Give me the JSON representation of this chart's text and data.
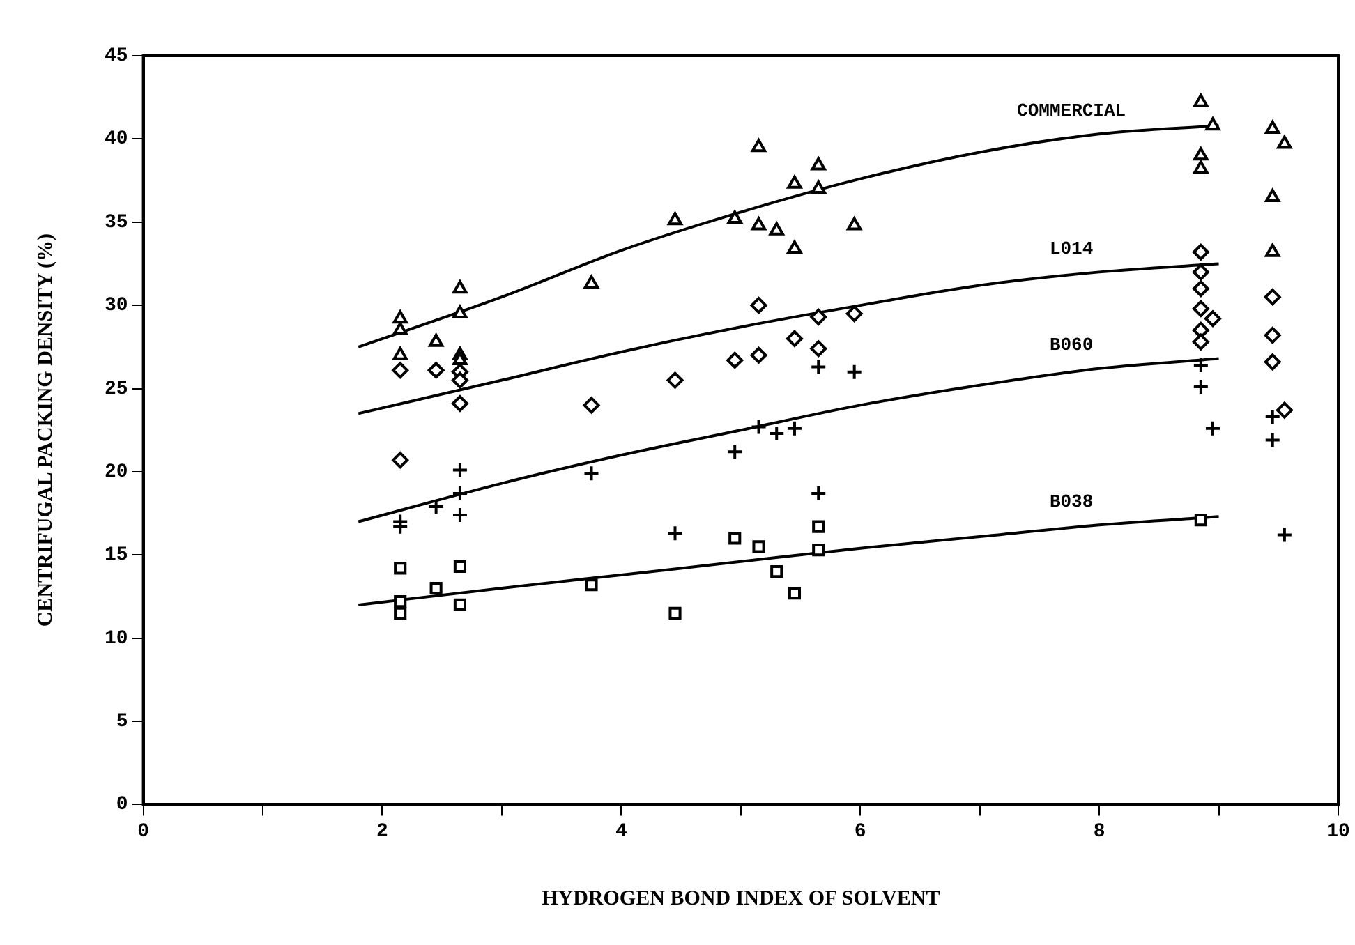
{
  "chart_data": {
    "type": "scatter",
    "xlabel": "HYDROGEN BOND INDEX OF SOLVENT",
    "ylabel": "CENTRIFUGAL PACKING DENSITY (%)",
    "xlim": [
      0,
      10
    ],
    "xticks": [
      0,
      {
        "value": 1,
        "label": null
      },
      2,
      {
        "value": 3,
        "label": null
      },
      4,
      {
        "value": 5,
        "label": null
      },
      6,
      {
        "value": 7,
        "label": null
      },
      8,
      {
        "value": 9,
        "label": null
      },
      10
    ],
    "ylim": [
      0,
      45
    ],
    "yticks": [
      0,
      5,
      10,
      15,
      20,
      25,
      30,
      35,
      40,
      45
    ],
    "grid": false,
    "legend": false,
    "series": [
      {
        "marker": "triangle",
        "color": "#000000",
        "x": [
          2.15,
          2.15,
          2.15,
          2.45,
          2.65,
          2.65,
          2.65,
          2.65,
          3.75,
          4.45,
          4.95,
          5.15,
          5.15,
          5.3,
          5.45,
          5.45,
          5.65,
          5.65,
          5.95,
          8.85,
          8.85,
          8.85,
          8.95,
          9.45,
          9.55,
          9.45,
          9.45
        ],
        "values": [
          29.2,
          28.5,
          27,
          27.8,
          31,
          29.5,
          27,
          26.7,
          31.3,
          35.1,
          35.2,
          39.5,
          34.8,
          34.5,
          37.3,
          33.4,
          38.4,
          37,
          34.8,
          42.2,
          39,
          38.2,
          40.8,
          40.6,
          39.7,
          36.5,
          33.2
        ]
      },
      {
        "marker": "diamond",
        "color": "#000000",
        "x": [
          2.15,
          2.15,
          2.45,
          2.65,
          2.65,
          2.65,
          3.75,
          4.45,
          4.95,
          5.15,
          5.15,
          5.45,
          5.65,
          5.65,
          5.95,
          8.85,
          8.85,
          8.85,
          8.85,
          8.95,
          8.85,
          8.85,
          9.45,
          9.45,
          9.45,
          9.55
        ],
        "values": [
          26.1,
          20.7,
          26.1,
          26,
          25.5,
          24.1,
          24,
          25.5,
          26.7,
          30,
          27,
          28,
          29.3,
          27.4,
          29.5,
          33.2,
          32,
          31,
          29.8,
          29.2,
          28.5,
          27.8,
          30.5,
          28.2,
          26.6,
          23.7
        ]
      },
      {
        "marker": "cross",
        "color": "#000000",
        "x": [
          2.15,
          2.15,
          2.45,
          2.65,
          2.65,
          2.65,
          3.75,
          4.45,
          4.95,
          5.15,
          5.3,
          5.45,
          5.65,
          5.65,
          5.95,
          8.85,
          8.85,
          8.95,
          9.45,
          9.45,
          9.55
        ],
        "values": [
          17,
          16.7,
          17.9,
          20.1,
          18.7,
          17.4,
          19.9,
          16.3,
          21.2,
          22.7,
          22.3,
          22.6,
          26.3,
          18.7,
          26,
          26.4,
          25.1,
          22.6,
          23.3,
          21.9,
          16.2
        ]
      },
      {
        "marker": "square",
        "color": "#000000",
        "x": [
          2.15,
          2.15,
          2.15,
          2.45,
          2.65,
          2.65,
          3.75,
          4.45,
          4.95,
          5.15,
          5.3,
          5.45,
          5.65,
          5.65,
          8.85
        ],
        "values": [
          14.2,
          12.2,
          11.5,
          13,
          14.3,
          12,
          13.2,
          11.5,
          16,
          15.5,
          14,
          12.7,
          16.7,
          15.3,
          17.1
        ]
      },
      {
        "type": "line",
        "name": "COMMERCIAL",
        "marker": "none",
        "color": "#000000",
        "x": [
          1.8,
          3,
          4,
          5,
          6,
          7,
          8,
          9
        ],
        "values": [
          27.5,
          30.5,
          33.3,
          35.6,
          37.6,
          39.2,
          40.3,
          40.8
        ]
      },
      {
        "type": "line",
        "name": "L014",
        "marker": "none",
        "color": "#000000",
        "x": [
          1.8,
          3,
          4,
          5,
          6,
          7,
          8,
          9
        ],
        "values": [
          23.5,
          25.5,
          27.2,
          28.7,
          30,
          31.2,
          32,
          32.5
        ]
      },
      {
        "type": "line",
        "name": "B060",
        "marker": "none",
        "color": "#000000",
        "x": [
          1.8,
          3,
          4,
          5,
          6,
          7,
          8,
          9
        ],
        "values": [
          17,
          19.3,
          21,
          22.5,
          24,
          25.2,
          26.2,
          26.8
        ]
      },
      {
        "type": "line",
        "name": "B038",
        "marker": "none",
        "color": "#000000",
        "x": [
          1.8,
          3,
          4,
          5,
          6,
          7,
          8,
          9
        ],
        "values": [
          12,
          13,
          13.8,
          14.6,
          15.4,
          16.1,
          16.8,
          17.3
        ]
      }
    ]
  }
}
